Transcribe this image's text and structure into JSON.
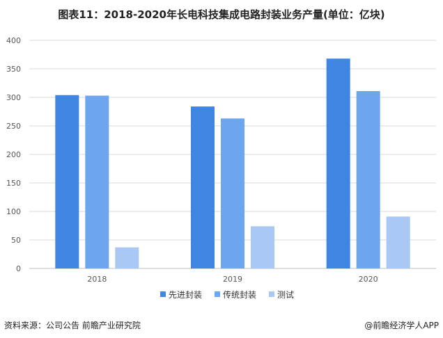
{
  "title": "图表11：2018-2020年长电科技集成电路封装业务产量(单位：亿块)",
  "source": "资料来源：公司公告 前瞻产业研究院",
  "brand": "@前瞻经济学人APP",
  "colors": {
    "series1": "#3f86e3",
    "series2": "#6ea5ef",
    "series3": "#a9c8f4",
    "grid": "#d9d9d9",
    "axis": "#bfbfbf"
  },
  "chart_data": {
    "type": "bar",
    "categories": [
      "2018",
      "2019",
      "2020"
    ],
    "series": [
      {
        "name": "先进封装",
        "values": [
          304,
          284,
          368
        ]
      },
      {
        "name": "传统封装",
        "values": [
          303,
          263,
          311
        ]
      },
      {
        "name": "测试",
        "values": [
          37,
          74,
          91
        ]
      }
    ],
    "yticks": [
      "0",
      "50",
      "100",
      "150",
      "200",
      "250",
      "300",
      "350",
      "400"
    ],
    "ylim": [
      0,
      400
    ],
    "xlabel": "",
    "ylabel": "",
    "grid": true,
    "legend": "bottom"
  }
}
